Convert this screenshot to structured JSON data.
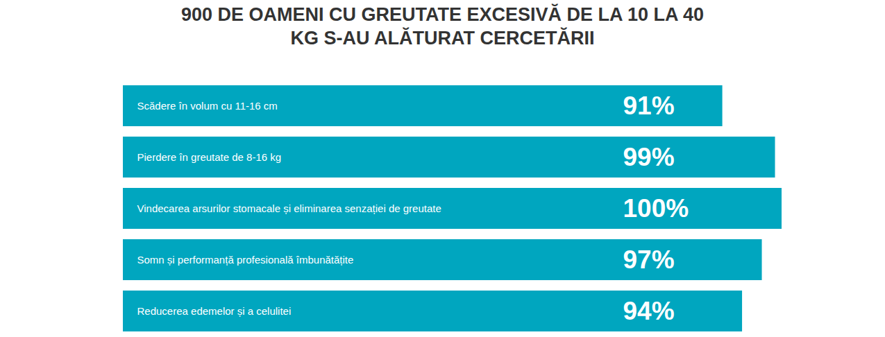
{
  "chart_data": {
    "type": "bar",
    "orientation": "horizontal",
    "title": "900 DE OAMENI CU GREUTATE EXCESIVĂ DE LA 10 LA 40 KG S-AU ALĂTURAT CERCETĂRII",
    "categories": [
      "Scădere în volum cu 11-16 cm",
      "Pierdere în greutate de 8-16 kg",
      "Vindecarea arsurilor stomacale și eliminarea senzației de greutate",
      "Somn și performanță profesională îmbunătățite",
      "Reducerea edemelor și a celulitei"
    ],
    "values": [
      91,
      99,
      100,
      97,
      94
    ],
    "value_labels": [
      "91%",
      "99%",
      "100%",
      "97%",
      "94%"
    ],
    "color": "#00a6bf",
    "xlim": [
      0,
      100
    ],
    "data_labels": true,
    "tick_labels": false,
    "grid": false
  }
}
